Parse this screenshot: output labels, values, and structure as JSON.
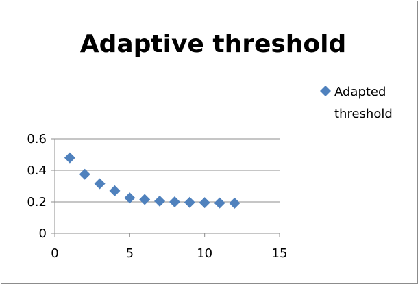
{
  "chart_data": {
    "type": "scatter",
    "title": "Adaptive threshold",
    "xlabel": "",
    "ylabel": "",
    "xlim": [
      0,
      15
    ],
    "ylim": [
      0,
      0.6
    ],
    "x_ticks": [
      "0",
      "5",
      "10",
      "15"
    ],
    "y_ticks": [
      "0",
      "0.2",
      "0.4",
      "0.6"
    ],
    "grid": "horizontal",
    "legend_position": "right",
    "series": [
      {
        "name": "Adapted threshold",
        "color": "#4f81bd",
        "marker": "diamond",
        "x": [
          1,
          2,
          3,
          4,
          5,
          6,
          7,
          8,
          9,
          10,
          11,
          12
        ],
        "y": [
          0.48,
          0.375,
          0.315,
          0.27,
          0.225,
          0.215,
          0.205,
          0.2,
          0.197,
          0.195,
          0.193,
          0.192
        ]
      }
    ]
  },
  "legend": {
    "lines": [
      "Adapted",
      "threshold"
    ]
  }
}
